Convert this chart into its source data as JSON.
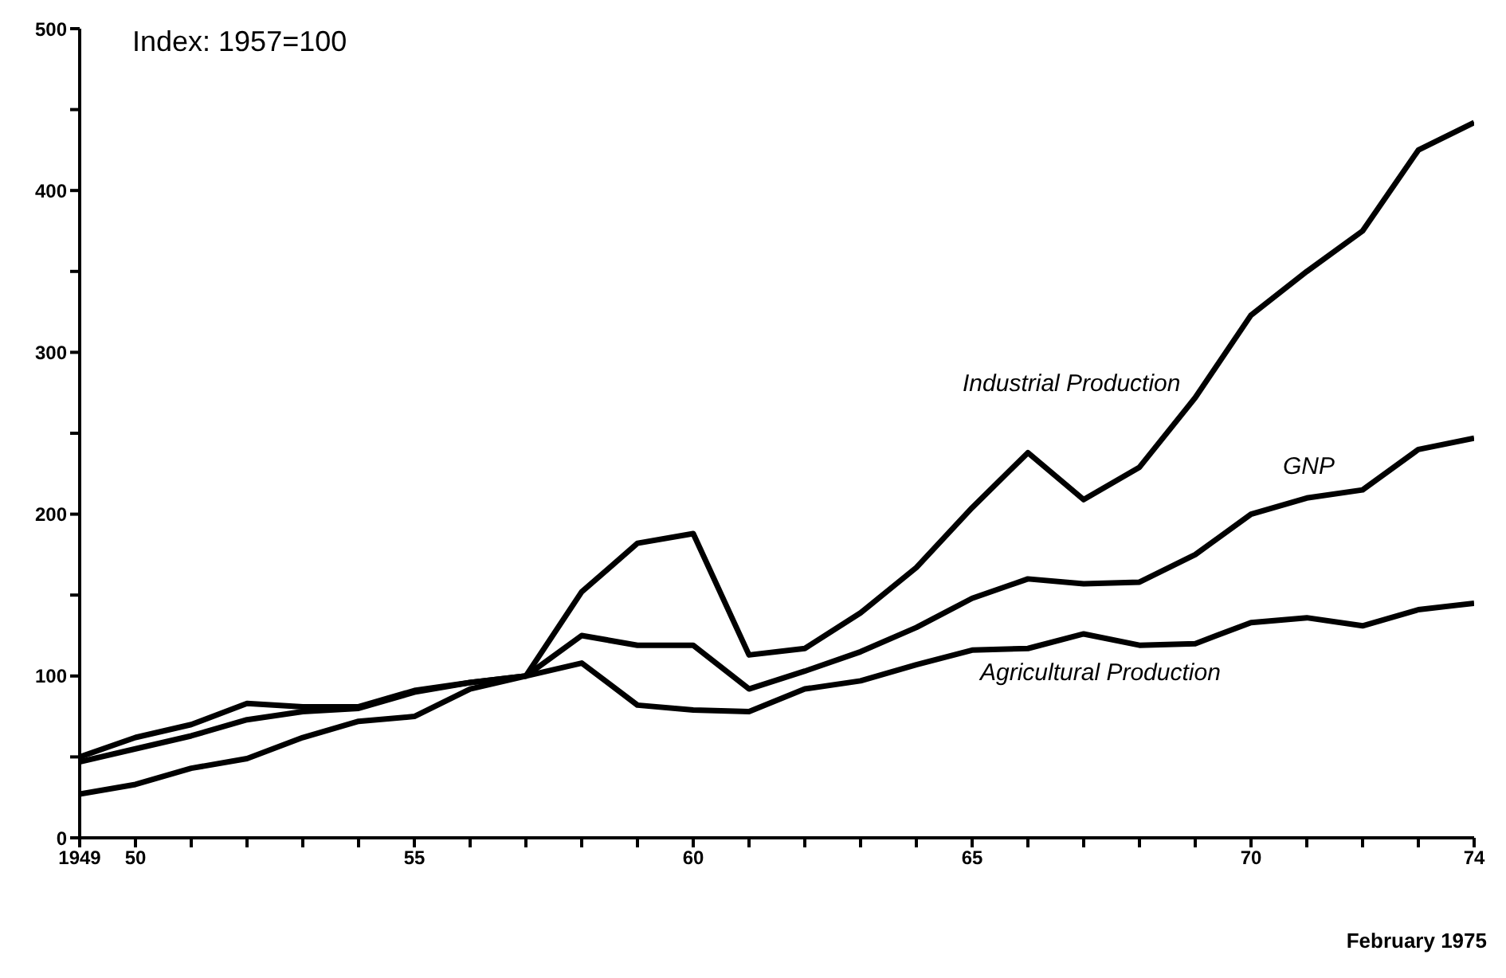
{
  "chart_data": {
    "type": "line",
    "x": [
      1949,
      1950,
      1951,
      1952,
      1953,
      1954,
      1955,
      1956,
      1957,
      1958,
      1959,
      1960,
      1961,
      1962,
      1963,
      1964,
      1965,
      1966,
      1967,
      1968,
      1969,
      1970,
      1971,
      1972,
      1973,
      1974
    ],
    "series": [
      {
        "name": "Industrial Production",
        "color": "#000000",
        "values": [
          50,
          62,
          70,
          83,
          81,
          81,
          91,
          96,
          100,
          152,
          182,
          188,
          113,
          117,
          139,
          167,
          204,
          238,
          209,
          229,
          272,
          323,
          350,
          375,
          425,
          442
        ]
      },
      {
        "name": "GNP",
        "color": "#000000",
        "values": [
          47,
          55,
          63,
          73,
          78,
          80,
          90,
          96,
          100,
          125,
          119,
          119,
          92,
          103,
          115,
          130,
          148,
          160,
          157,
          158,
          175,
          200,
          210,
          215,
          240,
          247
        ]
      },
      {
        "name": "Agricultural Production",
        "color": "#000000",
        "values": [
          27,
          33,
          43,
          49,
          62,
          72,
          75,
          92,
          100,
          108,
          82,
          79,
          78,
          92,
          97,
          107,
          116,
          117,
          126,
          119,
          120,
          133,
          136,
          131,
          141,
          145
        ]
      }
    ],
    "xlim": [
      1949,
      1974
    ],
    "xticks": [
      {
        "value": 1949,
        "label": "1949"
      },
      {
        "value": 1950,
        "label": "50"
      },
      {
        "value": 1951,
        "label": null
      },
      {
        "value": 1952,
        "label": null
      },
      {
        "value": 1953,
        "label": null
      },
      {
        "value": 1954,
        "label": null
      },
      {
        "value": 1955,
        "label": "55"
      },
      {
        "value": 1956,
        "label": null
      },
      {
        "value": 1957,
        "label": null
      },
      {
        "value": 1958,
        "label": null
      },
      {
        "value": 1959,
        "label": null
      },
      {
        "value": 1960,
        "label": "60"
      },
      {
        "value": 1961,
        "label": null
      },
      {
        "value": 1962,
        "label": null
      },
      {
        "value": 1963,
        "label": null
      },
      {
        "value": 1964,
        "label": null
      },
      {
        "value": 1965,
        "label": "65"
      },
      {
        "value": 1966,
        "label": null
      },
      {
        "value": 1967,
        "label": null
      },
      {
        "value": 1968,
        "label": null
      },
      {
        "value": 1969,
        "label": null
      },
      {
        "value": 1970,
        "label": "70"
      },
      {
        "value": 1971,
        "label": null
      },
      {
        "value": 1972,
        "label": null
      },
      {
        "value": 1973,
        "label": null
      },
      {
        "value": 1974,
        "label": "74"
      }
    ],
    "ylim": [
      0,
      500
    ],
    "yticks": [
      0,
      {
        "value": 50,
        "label": null
      },
      100,
      {
        "value": 150,
        "label": null
      },
      200,
      {
        "value": 250,
        "label": null
      },
      300,
      {
        "value": 350,
        "label": null
      },
      400,
      {
        "value": 450,
        "label": null
      },
      500
    ],
    "grid": false,
    "legend": false,
    "marker": "none",
    "line_style": "solid",
    "annotations": [
      "Index: 1957=100",
      "February 1975"
    ]
  }
}
